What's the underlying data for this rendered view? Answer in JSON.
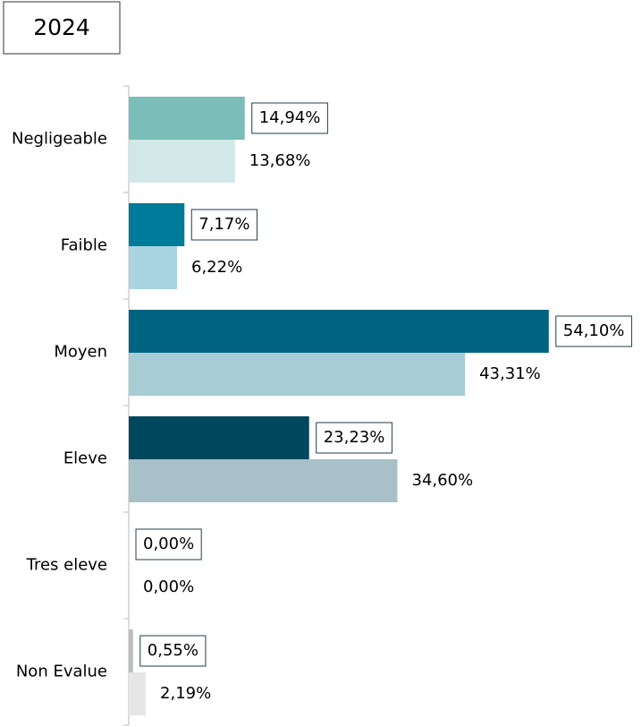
{
  "chart_data": {
    "type": "hbar",
    "title": "2024",
    "categories": [
      "Negligeable",
      "Faible",
      "Moyen",
      "Eleve",
      "Tres eleve",
      "Non Evalue"
    ],
    "series": [
      {
        "colors": [
          "#7bbdb8",
          "#007a99",
          "#006480",
          "#00475e",
          "#bdbdbd",
          "#bdbdbd"
        ],
        "values": [
          14.94,
          7.17,
          54.1,
          23.23,
          0.0,
          0.55
        ],
        "value_labels": [
          "14,94%",
          "7,17%",
          "54,10%",
          "23,23%",
          "0,00%",
          "0,55%"
        ]
      },
      {
        "colors": [
          "#d2e8e8",
          "#a9d3e0",
          "#a8ccd4",
          "#a8c0c8",
          "#e6e6e6",
          "#e6e6e6"
        ],
        "values": [
          13.68,
          6.22,
          43.31,
          34.6,
          0.0,
          2.19
        ],
        "value_labels": [
          "13,68%",
          "6,22%",
          "43,31%",
          "34,60%",
          "0,00%",
          "2,19%"
        ]
      }
    ],
    "xlim": [
      0,
      60
    ]
  }
}
